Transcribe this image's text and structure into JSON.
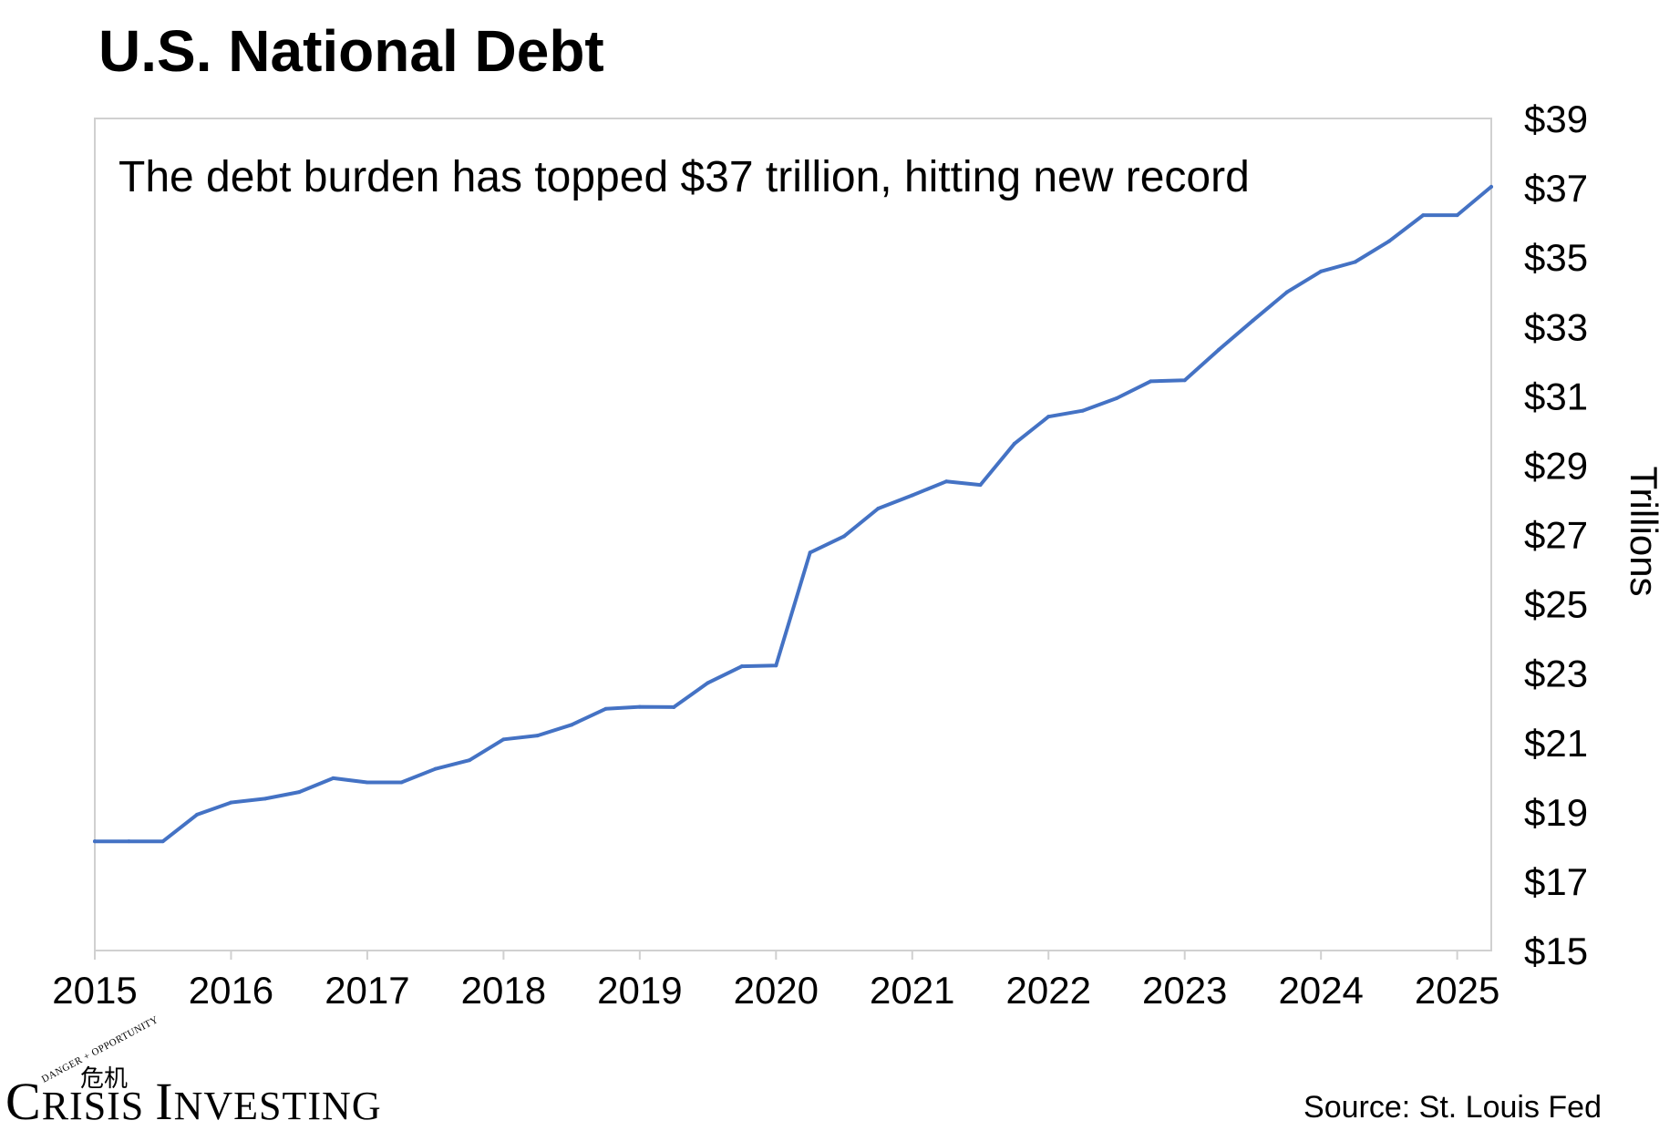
{
  "chart_data": {
    "type": "line",
    "title": "U.S. National Debt",
    "annotation": "The debt burden has topped $37 trillion, hitting new record",
    "ylabel": "Trillions",
    "y_axis_side": "right",
    "ylim": [
      15,
      39
    ],
    "y_ticks": [
      15,
      17,
      19,
      21,
      23,
      25,
      27,
      29,
      31,
      33,
      35,
      37,
      39
    ],
    "y_tick_labels": [
      "$15",
      "$17",
      "$19",
      "$21",
      "$23",
      "$25",
      "$27",
      "$29",
      "$31",
      "$33",
      "$35",
      "$37",
      "$39"
    ],
    "xlim": [
      2015,
      2025.25
    ],
    "x_ticks": [
      2015,
      2016,
      2017,
      2018,
      2019,
      2020,
      2021,
      2022,
      2023,
      2024,
      2025
    ],
    "x_tick_labels": [
      "2015",
      "2016",
      "2017",
      "2018",
      "2019",
      "2020",
      "2021",
      "2022",
      "2023",
      "2024",
      "2025"
    ],
    "grid": false,
    "series": [
      {
        "color": "#4472C4",
        "x": [
          2015.0,
          2015.25,
          2015.5,
          2015.75,
          2016.0,
          2016.25,
          2016.5,
          2016.75,
          2017.0,
          2017.25,
          2017.5,
          2017.75,
          2018.0,
          2018.25,
          2018.5,
          2018.75,
          2019.0,
          2019.25,
          2019.5,
          2019.75,
          2020.0,
          2020.25,
          2020.5,
          2020.75,
          2021.0,
          2021.25,
          2021.5,
          2021.75,
          2022.0,
          2022.25,
          2022.5,
          2022.75,
          2023.0,
          2023.25,
          2023.5,
          2023.75,
          2024.0,
          2024.25,
          2024.5,
          2024.75,
          2025.0,
          2025.25
        ],
        "values": [
          18.15,
          18.15,
          18.15,
          18.92,
          19.27,
          19.38,
          19.57,
          19.97,
          19.85,
          19.85,
          20.24,
          20.49,
          21.09,
          21.2,
          21.51,
          21.97,
          22.03,
          22.02,
          22.72,
          23.2,
          23.22,
          26.48,
          26.95,
          27.75,
          28.13,
          28.53,
          28.43,
          29.62,
          30.4,
          30.57,
          30.93,
          31.42,
          31.45,
          32.33,
          33.17,
          33.99,
          34.59,
          34.86,
          35.46,
          36.21,
          36.21,
          37.03
        ]
      }
    ]
  },
  "footer": {
    "logo_name": "Crisis Investing",
    "logo_tagline": "Danger + Opportunity",
    "logo_chinese": "危机",
    "source": "Source: St. Louis Fed"
  }
}
